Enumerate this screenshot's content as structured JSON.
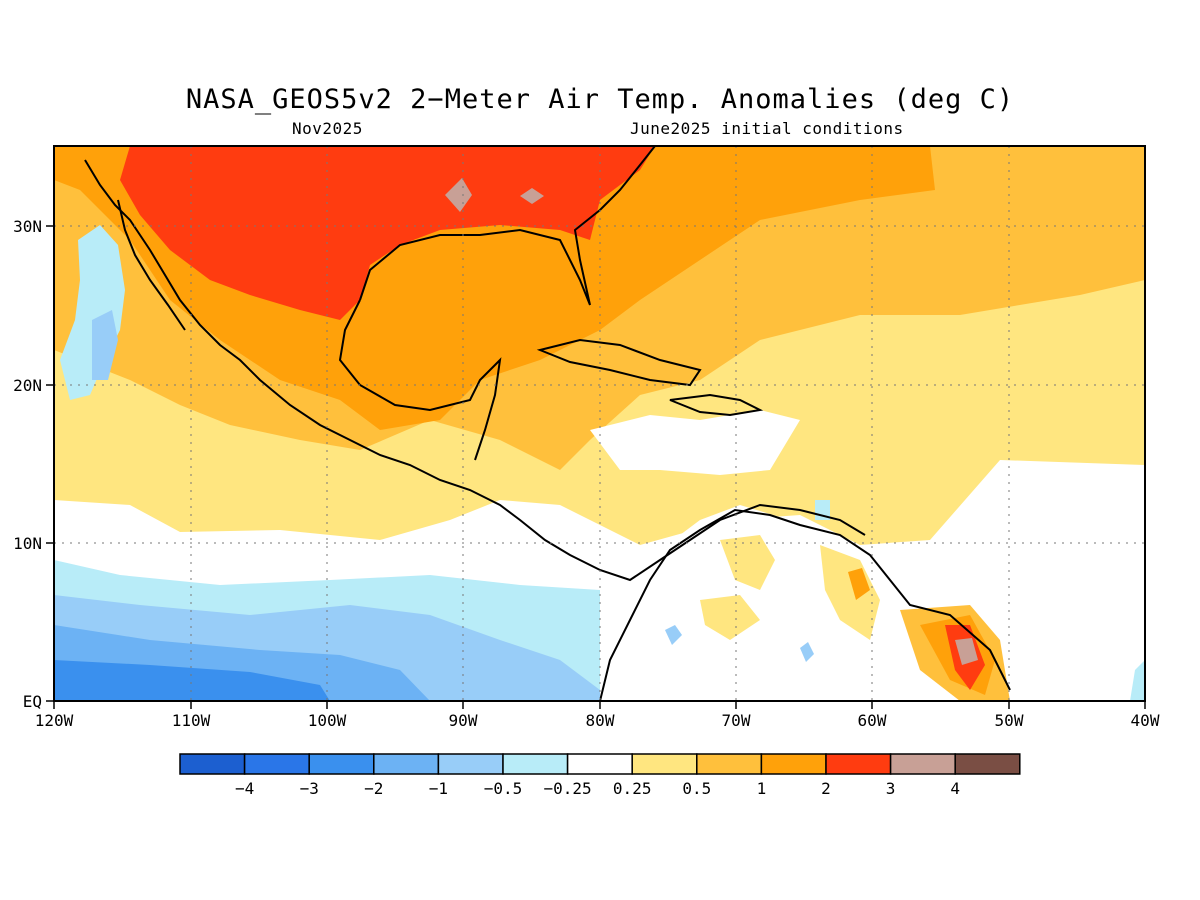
{
  "title": "NASA_GEOS5v2 2−Meter Air Temp. Anomalies (deg C)",
  "subtitle_left": "Nov2025",
  "subtitle_right": "June2025 initial conditions",
  "lat_labels": [
    "30N",
    "20N",
    "10N",
    "EQ"
  ],
  "lon_labels": [
    "120W",
    "110W",
    "100W",
    "90W",
    "80W",
    "70W",
    "60W",
    "50W",
    "40W"
  ],
  "colorbar": {
    "colors": [
      "#1c5fd0",
      "#2a76e8",
      "#3a90ee",
      "#6cb2f4",
      "#98cdf8",
      "#b8ecf8",
      "#ffffff",
      "#ffe680",
      "#ffc03c",
      "#ffa10a",
      "#ff3c10",
      "#c8a096",
      "#7a4e44"
    ],
    "labels": [
      "−4",
      "−3",
      "−2",
      "−1",
      "−0.5",
      "−0.25",
      "0.25",
      "0.5",
      "1",
      "2",
      "3",
      "4"
    ]
  }
}
